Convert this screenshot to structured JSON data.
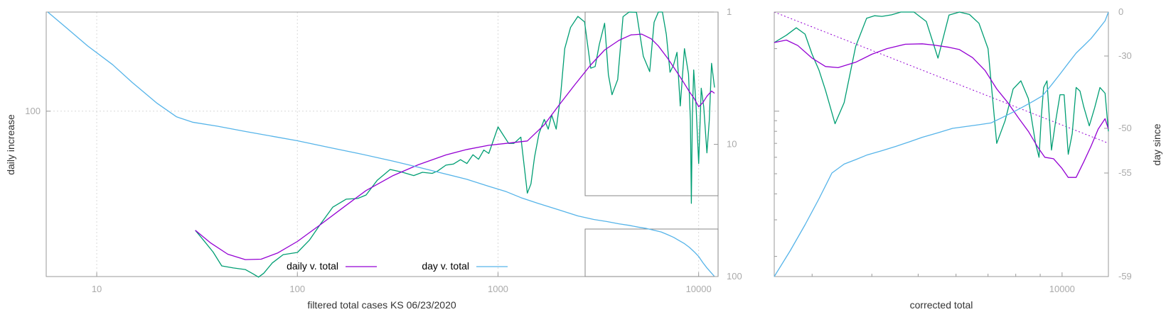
{
  "chart_data": [
    {
      "type": "line",
      "xlabel": "filtered total cases KS 06/23/2020",
      "ylabel": "daily increase",
      "x_scale": "log",
      "y_scale": "log",
      "xlim": [
        5.6,
        12500
      ],
      "ylim": [
        16,
        300
      ],
      "y2lim": [
        1,
        100
      ],
      "y2_scale": "log-reversed",
      "x_ticks": [
        10,
        100,
        1000,
        10000
      ],
      "x_tick_labels": [
        "10",
        "100",
        "1000",
        "10000"
      ],
      "y_ticks": [
        100
      ],
      "y_tick_labels": [
        "100"
      ],
      "y2_ticks": [
        1,
        10,
        100
      ],
      "y2_tick_labels": [
        "1",
        "10",
        "100"
      ],
      "grid": true,
      "legend_position": "bottom-center",
      "colors": {
        "daily": "#9400d3",
        "raw": "#009e73",
        "day": "#56b4e9"
      },
      "series": [
        {
          "name": "daily v. total",
          "color": "#9400d3",
          "x": [
            31,
            37,
            45,
            55,
            66,
            80,
            100,
            130,
            170,
            220,
            300,
            400,
            550,
            700,
            900,
            1100,
            1400,
            1700,
            2000,
            2400,
            2900,
            3400,
            4000,
            4600,
            5200,
            5800,
            6300,
            7000,
            7700,
            8400,
            9000,
            9500,
            10000,
            10500,
            11000,
            11600,
            12000
          ],
          "y": [
            26.7,
            23.2,
            20.5,
            19.3,
            19.4,
            20.8,
            23.6,
            28.4,
            34.5,
            41.5,
            49.0,
            55.2,
            61.6,
            65.4,
            68.5,
            70.0,
            71.9,
            86.0,
            106,
            133,
            167,
            197,
            219,
            233,
            235,
            223,
            206,
            180,
            157,
            138,
            124,
            115,
            105,
            110,
            118,
            125,
            122
          ]
        },
        {
          "name": "",
          "color": "#009e73",
          "x": [
            31,
            34,
            38,
            42,
            48,
            55,
            60,
            64,
            68,
            75,
            85,
            100,
            115,
            130,
            150,
            175,
            200,
            220,
            250,
            290,
            330,
            380,
            420,
            470,
            500,
            550,
            600,
            650,
            700,
            750,
            800,
            850,
            900,
            1000,
            1060,
            1130,
            1200,
            1300,
            1400,
            1460,
            1520,
            1600,
            1700,
            1780,
            1850,
            1950,
            2050,
            2150,
            2300,
            2500,
            2700,
            2900,
            3050,
            3200,
            3400,
            3550,
            3700,
            3950,
            4200,
            4500,
            4900,
            5300,
            5700,
            6000,
            6300,
            6600,
            6900,
            7200,
            7500,
            7800,
            8100,
            8500,
            8900,
            9100,
            9200,
            9300,
            9450,
            9700,
            10000,
            10300,
            10600,
            11000,
            11300,
            11600,
            12000
          ],
          "y": [
            26.7,
            24.0,
            21.0,
            18.0,
            17.6,
            17.3,
            16.5,
            15.9,
            16.6,
            18.6,
            20.4,
            20.9,
            24.0,
            28.5,
            34.5,
            37.7,
            38.0,
            39.5,
            46.5,
            52.4,
            51.0,
            49.0,
            50.8,
            50.2,
            51.5,
            55.0,
            55.7,
            58.4,
            56.0,
            61.7,
            58.7,
            65.0,
            62.6,
            84.0,
            77.0,
            70.0,
            70.0,
            75.0,
            40.3,
            44.7,
            60.0,
            78.0,
            91.3,
            82.0,
            96.0,
            82.0,
            118,
            200,
            253,
            286,
            269,
            161,
            164,
            210,
            265,
            150,
            120,
            142,
            285,
            300,
            299,
            184,
            155,
            268,
            300,
            300,
            234,
            154,
            167,
            192,
            106,
            200,
            151,
            90,
            36,
            95,
            158,
            108,
            56,
            129,
            105,
            63,
            90,
            170,
            130
          ]
        },
        {
          "name": "day v. total",
          "color": "#56b4e9",
          "axis": "y2",
          "x": [
            5.7,
            7,
            9,
            12,
            15,
            20,
            25,
            30,
            40,
            55,
            75,
            100,
            150,
            200,
            300,
            400,
            500,
            700,
            900,
            1100,
            1300,
            1600,
            2000,
            2500,
            3000,
            3500,
            4000,
            4500,
            5000,
            5500,
            6000,
            6500,
            7000,
            7500,
            8000,
            8500,
            9000,
            9500,
            10000,
            10500,
            11000,
            11500,
            12000
          ],
          "y": [
            1.0,
            1.3,
            1.8,
            2.5,
            3.4,
            4.9,
            6.2,
            6.8,
            7.3,
            8.0,
            8.7,
            9.4,
            10.7,
            11.7,
            13.4,
            14.9,
            16.2,
            18.4,
            20.8,
            22.8,
            25.3,
            28.1,
            31.2,
            34.8,
            37.0,
            38.4,
            39.9,
            41.0,
            42.3,
            43.3,
            44.7,
            46.0,
            48.2,
            50.5,
            53.5,
            56.4,
            60.2,
            65.0,
            70.5,
            78.5,
            86.0,
            93.0,
            100
          ]
        }
      ]
    },
    {
      "type": "line",
      "xlabel": "corrected total",
      "ylabel": "day since",
      "x_scale": "log",
      "y_scale": "log",
      "xlim": [
        2500,
        12500
      ],
      "ylim": [
        16,
        300
      ],
      "y2lim": [
        -59,
        0
      ],
      "x_ticks": [
        10000
      ],
      "x_tick_labels": [
        "10000"
      ],
      "y2_ticks": [
        0,
        -30,
        -50,
        -55,
        -59
      ],
      "y2_tick_labels": [
        "0",
        "-30",
        "-50",
        "-55",
        "-59"
      ],
      "grid": false,
      "legend_position": "none",
      "series": [
        {
          "name": "",
          "color": "#9400d3",
          "x": [
            2500,
            2650,
            2800,
            3000,
            3200,
            3400,
            3700,
            4000,
            4300,
            4700,
            5100,
            5400,
            5800,
            6100,
            6500,
            6900,
            7300,
            7700,
            8100,
            8500,
            8900,
            9200,
            9600,
            10000,
            10300,
            10700,
            11100,
            11500,
            11900,
            12300,
            12500
          ],
          "y": [
            214,
            220,
            207,
            180,
            164,
            162,
            172,
            188,
            200,
            210,
            211,
            208,
            203,
            198,
            181,
            157,
            128,
            110,
            93,
            80,
            67,
            60,
            59,
            53,
            48,
            48,
            57,
            68,
            82,
            92,
            82
          ]
        },
        {
          "name": "",
          "color": "#009e73",
          "x": [
            2500,
            2650,
            2780,
            2900,
            3000,
            3100,
            3200,
            3350,
            3500,
            3700,
            3900,
            4050,
            4200,
            4400,
            4600,
            4900,
            5200,
            5500,
            5800,
            6100,
            6400,
            6700,
            7000,
            7300,
            7600,
            7900,
            8200,
            8500,
            8800,
            8950,
            9050,
            9150,
            9300,
            9500,
            9700,
            9900,
            10100,
            10300,
            10500,
            10700,
            10900,
            11100,
            11400,
            11700,
            12000,
            12300,
            12500
          ],
          "y": [
            214,
            232,
            252,
            235,
            188,
            158,
            126,
            87,
            110,
            205,
            280,
            288,
            286,
            291,
            300,
            300,
            270,
            180,
            290,
            300,
            292,
            265,
            200,
            70,
            90,
            128,
            140,
            115,
            70,
            60,
            95,
            130,
            140,
            65,
            90,
            120,
            120,
            62,
            78,
            130,
            125,
            105,
            85,
            104,
            130,
            122,
            80
          ]
        },
        {
          "name": "",
          "color": "#56b4e9",
          "axis": "y2",
          "x": [
            2500,
            2700,
            2900,
            3100,
            3300,
            3500,
            3700,
            3900,
            4200,
            4500,
            4800,
            5100,
            5500,
            5900,
            6300,
            6700,
            7100,
            7500,
            7900,
            8300,
            8700,
            9100,
            9500,
            9900,
            10300,
            10700,
            11100,
            11500,
            11900,
            12300,
            12500
          ],
          "y": [
            -59,
            -58,
            -57,
            -56,
            -55,
            -54,
            -53.5,
            -53,
            -52.5,
            -52,
            -51.5,
            -51,
            -50.5,
            -50,
            -49.5,
            -49,
            -48.5,
            -47,
            -45.5,
            -44,
            -42.5,
            -41,
            -38,
            -35,
            -32,
            -28,
            -23,
            -18,
            -12,
            -6,
            0
          ]
        }
      ]
    }
  ],
  "legend": [
    {
      "label": "daily v. total",
      "color": "#9400d3"
    },
    {
      "label": "day v. total",
      "color": "#56b4e9"
    }
  ]
}
